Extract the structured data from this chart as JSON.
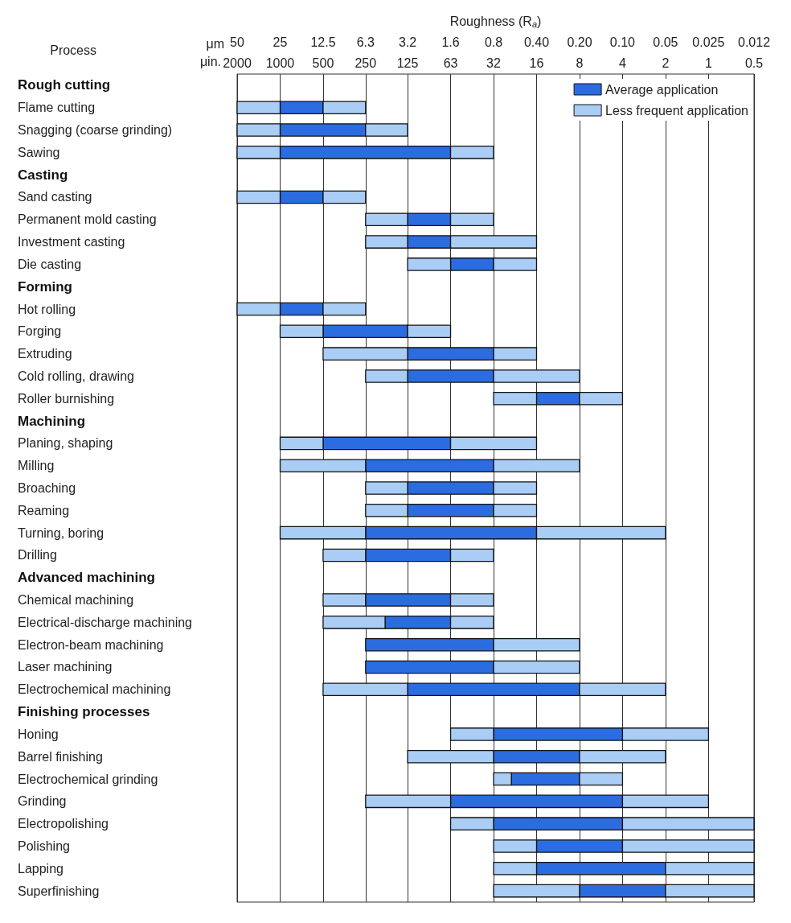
{
  "chart_data": {
    "type": "bar",
    "orientation": "horizontal",
    "xlabel": "Roughness (R$_{a}$)",
    "ylabel": "Process",
    "annotations": [
      "μm",
      "μin.",
      "2000",
      "1000",
      "500",
      "250",
      "125",
      "63",
      "32",
      "16",
      "8",
      "4",
      "2",
      "1",
      "0.5"
    ],
    "categories": [
      "Rough cutting",
      "Flame cutting",
      "Snagging (coarse grinding)",
      "Sawing",
      "Casting",
      "Sand casting",
      "Permanent mold casting",
      "Investment casting",
      "Die casting",
      "Forming",
      "Hot rolling",
      "Forging",
      "Extruding",
      "Cold rolling, drawing",
      "Roller burnishing",
      "Machining",
      "Planing, shaping",
      "Milling",
      "Broaching",
      "Reaming",
      "Turning, boring",
      "Drilling",
      "Advanced machining",
      "Chemical machining",
      "Electrical-discharge machining",
      "Electron-beam machining",
      "Laser machining",
      "Electrochemical machining",
      "Finishing processes",
      "Honing",
      "Barrel finishing",
      "Electrochemical grinding",
      "Grinding",
      "Electropolishing",
      "Polishing",
      "Lapping",
      "Superfinishing"
    ],
    "series": [
      {
        "name": "Average application",
        "color": "#2b6de0",
        "base": [
          null,
          12.5,
          6.3,
          1.6,
          null,
          12.5,
          1.6,
          1.6,
          0.8,
          null,
          12.5,
          3.2,
          0.8,
          0.8,
          0.2,
          null,
          1.6,
          0.8,
          0.8,
          0.8,
          0.4,
          1.6,
          null,
          1.6,
          1.6,
          0.8,
          0.8,
          0.2,
          null,
          0.1,
          0.2,
          0.2,
          0.1,
          0.1,
          0.1,
          0.05,
          0.05
        ],
        "values": [
          null,
          12.5,
          18.7,
          23.4,
          null,
          12.5,
          1.6,
          1.6,
          0.8,
          null,
          12.5,
          9.3,
          2.4,
          2.4,
          0.2,
          null,
          10.9,
          5.5,
          2.4,
          2.4,
          5.9,
          4.7,
          null,
          4.7,
          3.0,
          5.5,
          5.5,
          3.0,
          null,
          0.7,
          0.6,
          0.4,
          1.5,
          0.7,
          0.3,
          0.35,
          0.15
        ]
      },
      {
        "name": "Less frequent application",
        "color": "#a9cdf5",
        "base": [
          null,
          25,
          25,
          25,
          null,
          25,
          3.2,
          3.2,
          1.6,
          null,
          25,
          12.5,
          3.2,
          3.2,
          0.4,
          null,
          12.5,
          6.3,
          3.2,
          3.2,
          6.3,
          6.3,
          null,
          6.3,
          4.6,
          null,
          null,
          3.2,
          null,
          0.8,
          0.8,
          0.6,
          1.6,
          0.8,
          0.4,
          0.4,
          0.2
        ],
        "values": [
          null,
          25,
          25,
          25,
          null,
          25,
          3.1,
          3.1,
          1.6,
          null,
          25,
          12.5,
          9.3,
          3.1,
          0.4,
          null,
          12.5,
          18.7,
          3.1,
          3.1,
          18.7,
          6.2,
          null,
          6.2,
          7.9,
          null,
          null,
          9.3,
          null,
          0.8,
          2.4,
          0.2,
          4.7,
          0.8,
          0.4,
          0.4,
          0.6
        ]
      },
      {
        "color": "#a9cdf5",
        "base": [
          null,
          6.3,
          3.2,
          0.8,
          null,
          6.3,
          0.8,
          0.4,
          0.4,
          null,
          6.3,
          1.6,
          0.4,
          0.2,
          0.1,
          null,
          0.4,
          0.2,
          0.4,
          0.4,
          0.05,
          0.8,
          null,
          0.8,
          0.8,
          0.2,
          0.2,
          0.05,
          null,
          0.025,
          0.05,
          0.1,
          0.025,
          0.012,
          0.012,
          0.012,
          0.012
        ],
        "values": [
          null,
          6.2,
          3.1,
          0.8,
          null,
          6.2,
          0.8,
          1.2,
          0.4,
          null,
          6.2,
          1.6,
          0.4,
          0.6,
          0.1,
          null,
          1.2,
          0.6,
          0.4,
          0.4,
          0.35,
          0.8,
          null,
          0.8,
          0.8,
          0.6,
          0.6,
          0.15,
          null,
          0.075,
          0.15,
          0.1,
          0.075,
          0.088,
          0.088,
          0.038,
          0.038
        ]
      }
    ],
    "log": "x",
    "xlim": [
      50,
      0.012
    ],
    "xticks": [
      50,
      25,
      12.5,
      6.3,
      3.2,
      1.6,
      0.8,
      {
        "value": 0.4,
        "label": "0.40"
      },
      {
        "value": 0.2,
        "label": "0.20"
      },
      {
        "value": 0.1,
        "label": "0.10"
      },
      0.05,
      0.025,
      0.012
    ],
    "grid": "x",
    "legend": "top right"
  }
}
